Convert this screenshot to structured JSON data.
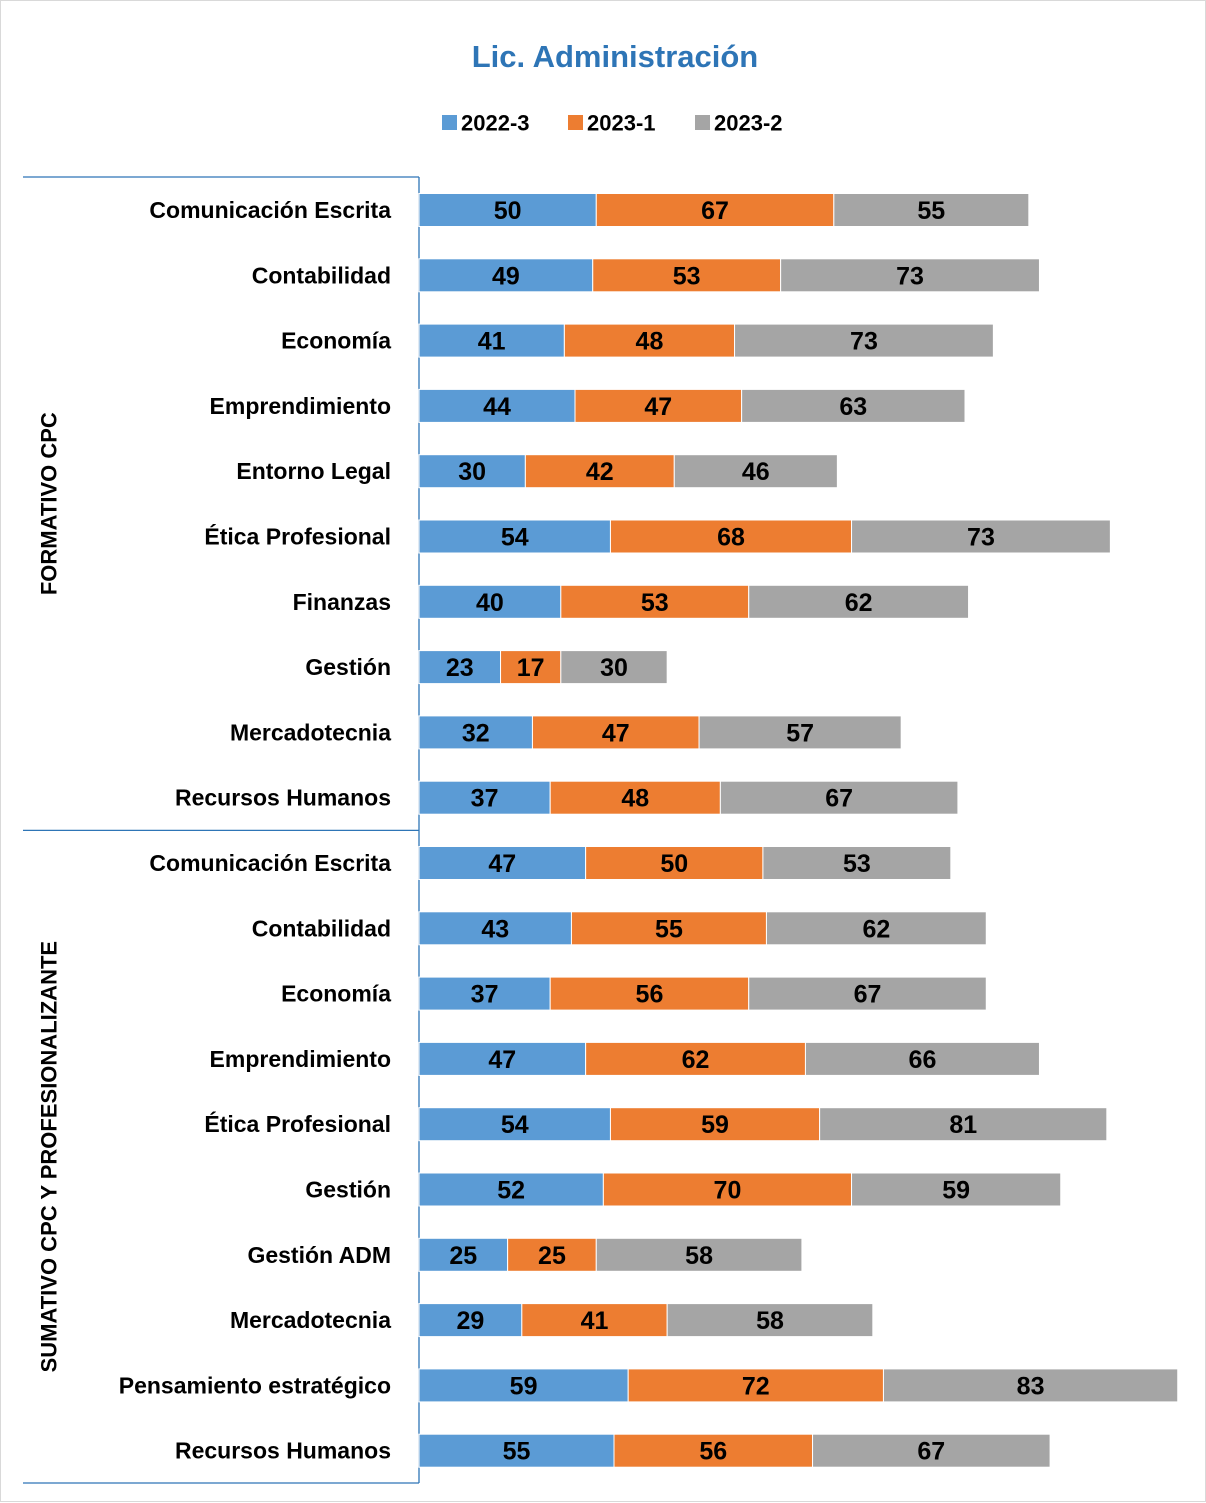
{
  "chart_data": {
    "type": "bar",
    "orientation": "horizontal",
    "stacked": true,
    "title": "Lic. Administración",
    "legend_position": "top",
    "grid": false,
    "xlim": [
      0,
      220
    ],
    "groups": [
      {
        "label": "FORMATIVO CPC",
        "count": 10
      },
      {
        "label": "SUMATIVO CPC Y PROFESIONALIZANTE",
        "count": 10
      }
    ],
    "categories": [
      "Comunicación Escrita",
      "Contabilidad",
      "Economía",
      "Emprendimiento",
      "Entorno Legal",
      "Ética Profesional",
      "Finanzas",
      "Gestión",
      "Mercadotecnia",
      "Recursos Humanos",
      "Comunicación Escrita",
      "Contabilidad",
      "Economía",
      "Emprendimiento",
      "Ética Profesional",
      "Gestión",
      "Gestión ADM",
      "Mercadotecnia",
      "Pensamiento estratégico",
      "Recursos Humanos"
    ],
    "series": [
      {
        "name": "2022-3",
        "color": "#5b9bd5",
        "values": [
          50,
          49,
          41,
          44,
          30,
          54,
          40,
          23,
          32,
          37,
          47,
          43,
          37,
          47,
          54,
          52,
          25,
          29,
          59,
          55
        ]
      },
      {
        "name": "2023-1",
        "color": "#ed7d31",
        "values": [
          67,
          53,
          48,
          47,
          42,
          68,
          53,
          17,
          47,
          48,
          50,
          55,
          56,
          62,
          59,
          70,
          25,
          41,
          72,
          56
        ]
      },
      {
        "name": "2023-2",
        "color": "#a5a5a5",
        "values": [
          55,
          73,
          73,
          63,
          46,
          73,
          62,
          30,
          57,
          67,
          53,
          62,
          67,
          66,
          81,
          59,
          58,
          58,
          83,
          67
        ]
      }
    ]
  }
}
